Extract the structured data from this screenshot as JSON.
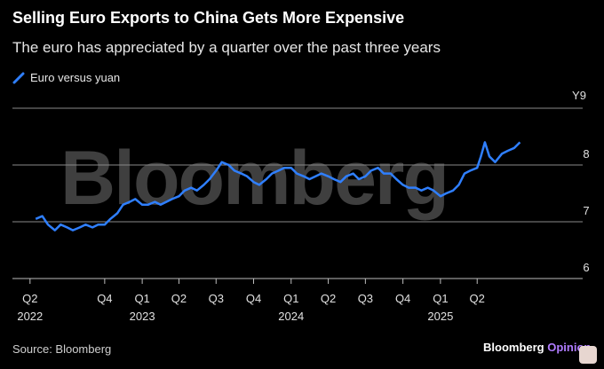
{
  "header": {
    "title": "Selling Euro Exports to China Gets More Expensive",
    "subtitle": "The euro has appreciated by a quarter over the past three years"
  },
  "legend": {
    "label": "Euro versus yuan"
  },
  "watermark": "Bloomberg",
  "footer": {
    "source": "Source: Bloomberg",
    "brand_main": "Bloomberg",
    "brand_accent": "Opinion"
  },
  "colors": {
    "line": "#2f7fff",
    "background": "#000000",
    "grid": "#8a8a8a",
    "brand_accent": "#b07cff"
  },
  "chart_data": {
    "type": "line",
    "y_unit_label": "Y9",
    "ylim": [
      6,
      9
    ],
    "yticks": [
      6,
      7,
      8
    ],
    "grid": true,
    "legend_position": "top-left",
    "x_ticks": [
      {
        "date": "2022-04-01",
        "label": "Q2",
        "year": "2022"
      },
      {
        "date": "2022-10-01",
        "label": "Q4",
        "year": ""
      },
      {
        "date": "2023-01-01",
        "label": "Q1",
        "year": "2023"
      },
      {
        "date": "2023-04-01",
        "label": "Q2",
        "year": ""
      },
      {
        "date": "2023-07-01",
        "label": "Q3",
        "year": ""
      },
      {
        "date": "2023-10-01",
        "label": "Q4",
        "year": ""
      },
      {
        "date": "2024-01-01",
        "label": "Q1",
        "year": "2024"
      },
      {
        "date": "2024-04-01",
        "label": "Q2",
        "year": ""
      },
      {
        "date": "2024-07-01",
        "label": "Q3",
        "year": ""
      },
      {
        "date": "2024-10-01",
        "label": "Q4",
        "year": ""
      },
      {
        "date": "2025-01-01",
        "label": "Q1",
        "year": "2025"
      },
      {
        "date": "2025-04-01",
        "label": "Q2",
        "year": ""
      }
    ],
    "series": [
      {
        "points": [
          [
            "2022-04-15",
            7.05
          ],
          [
            "2022-05-01",
            7.1
          ],
          [
            "2022-05-15",
            6.95
          ],
          [
            "2022-06-01",
            6.85
          ],
          [
            "2022-06-15",
            6.95
          ],
          [
            "2022-07-01",
            6.9
          ],
          [
            "2022-07-15",
            6.85
          ],
          [
            "2022-08-01",
            6.9
          ],
          [
            "2022-08-15",
            6.95
          ],
          [
            "2022-09-01",
            6.9
          ],
          [
            "2022-09-15",
            6.95
          ],
          [
            "2022-10-01",
            6.95
          ],
          [
            "2022-10-15",
            7.05
          ],
          [
            "2022-11-01",
            7.15
          ],
          [
            "2022-11-15",
            7.3
          ],
          [
            "2022-12-01",
            7.35
          ],
          [
            "2022-12-15",
            7.4
          ],
          [
            "2023-01-01",
            7.3
          ],
          [
            "2023-01-15",
            7.3
          ],
          [
            "2023-02-01",
            7.35
          ],
          [
            "2023-02-15",
            7.3
          ],
          [
            "2023-03-01",
            7.35
          ],
          [
            "2023-03-15",
            7.4
          ],
          [
            "2023-04-01",
            7.45
          ],
          [
            "2023-04-15",
            7.55
          ],
          [
            "2023-05-01",
            7.6
          ],
          [
            "2023-05-15",
            7.55
          ],
          [
            "2023-06-01",
            7.65
          ],
          [
            "2023-06-15",
            7.75
          ],
          [
            "2023-07-01",
            7.9
          ],
          [
            "2023-07-15",
            8.05
          ],
          [
            "2023-08-01",
            8.0
          ],
          [
            "2023-08-15",
            7.9
          ],
          [
            "2023-09-01",
            7.85
          ],
          [
            "2023-09-15",
            7.8
          ],
          [
            "2023-10-01",
            7.7
          ],
          [
            "2023-10-15",
            7.65
          ],
          [
            "2023-11-01",
            7.75
          ],
          [
            "2023-11-15",
            7.85
          ],
          [
            "2023-12-01",
            7.9
          ],
          [
            "2023-12-15",
            7.95
          ],
          [
            "2024-01-01",
            7.95
          ],
          [
            "2024-01-15",
            7.85
          ],
          [
            "2024-02-01",
            7.8
          ],
          [
            "2024-02-15",
            7.75
          ],
          [
            "2024-03-01",
            7.8
          ],
          [
            "2024-03-15",
            7.85
          ],
          [
            "2024-04-01",
            7.8
          ],
          [
            "2024-04-15",
            7.75
          ],
          [
            "2024-05-01",
            7.7
          ],
          [
            "2024-05-15",
            7.8
          ],
          [
            "2024-06-01",
            7.85
          ],
          [
            "2024-06-15",
            7.75
          ],
          [
            "2024-07-01",
            7.8
          ],
          [
            "2024-07-15",
            7.9
          ],
          [
            "2024-08-01",
            7.95
          ],
          [
            "2024-08-15",
            7.85
          ],
          [
            "2024-09-01",
            7.85
          ],
          [
            "2024-09-15",
            7.75
          ],
          [
            "2024-10-01",
            7.65
          ],
          [
            "2024-10-15",
            7.6
          ],
          [
            "2024-11-01",
            7.6
          ],
          [
            "2024-11-15",
            7.55
          ],
          [
            "2024-12-01",
            7.6
          ],
          [
            "2024-12-15",
            7.55
          ],
          [
            "2025-01-01",
            7.45
          ],
          [
            "2025-01-15",
            7.5
          ],
          [
            "2025-02-01",
            7.55
          ],
          [
            "2025-02-15",
            7.65
          ],
          [
            "2025-03-01",
            7.85
          ],
          [
            "2025-03-15",
            7.9
          ],
          [
            "2025-04-01",
            7.95
          ],
          [
            "2025-04-10",
            8.15
          ],
          [
            "2025-04-20",
            8.4
          ],
          [
            "2025-05-01",
            8.15
          ],
          [
            "2025-05-15",
            8.05
          ],
          [
            "2025-06-01",
            8.2
          ],
          [
            "2025-06-15",
            8.25
          ],
          [
            "2025-07-01",
            8.3
          ],
          [
            "2025-07-15",
            8.4
          ]
        ]
      }
    ]
  }
}
